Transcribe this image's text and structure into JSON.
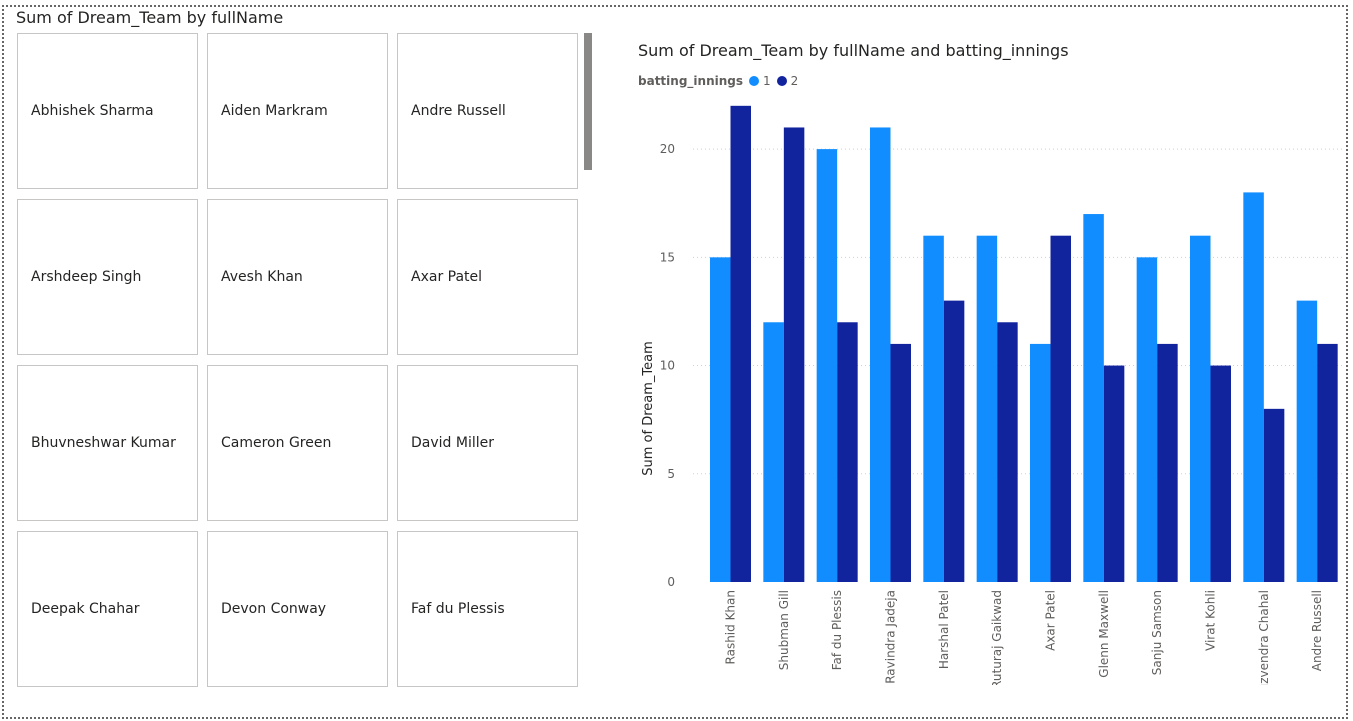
{
  "slicer": {
    "title": "Sum of Dream_Team by fullName",
    "items": [
      {
        "label": "Abhishek Sharma"
      },
      {
        "label": "Aiden Markram"
      },
      {
        "label": "Andre Russell"
      },
      {
        "label": "Arshdeep Singh"
      },
      {
        "label": "Avesh Khan"
      },
      {
        "label": "Axar Patel"
      },
      {
        "label": "Bhuvneshwar Kumar"
      },
      {
        "label": "Cameron Green"
      },
      {
        "label": "David Miller"
      },
      {
        "label": "Deepak Chahar"
      },
      {
        "label": "Devon Conway"
      },
      {
        "label": "Faf du Plessis"
      }
    ]
  },
  "chart": {
    "title": "Sum of Dream_Team by fullName and batting_innings",
    "legend_title": "batting_innings",
    "legend_items": [
      "1",
      "2"
    ]
  },
  "chart_data": {
    "type": "bar",
    "title": "Sum of Dream_Team by fullName and batting_innings",
    "xlabel": "",
    "ylabel": "Sum of Dream_Team",
    "categories": [
      "Rashid Khan",
      "Shubman Gill",
      "Faf du Plessis",
      "Ravindra Jadeja",
      "Harshal Patel",
      "Ruturaj Gaikwad",
      "Axar Patel",
      "Glenn Maxwell",
      "Sanju Samson",
      "Virat Kohli",
      "Yuzvendra Chahal",
      "Andre Russell"
    ],
    "series": [
      {
        "name": "1",
        "color": "#118dff",
        "values": [
          15,
          12,
          20,
          21,
          16,
          16,
          11,
          17,
          15,
          16,
          18,
          13
        ]
      },
      {
        "name": "2",
        "color": "#12239e",
        "values": [
          22,
          21,
          12,
          11,
          13,
          12,
          16,
          10,
          11,
          10,
          8,
          11
        ]
      }
    ],
    "yticks": [
      0,
      5,
      10,
      15,
      20
    ],
    "ylim": [
      0,
      22.5
    ],
    "grid": true,
    "legend_position": "top-left"
  }
}
